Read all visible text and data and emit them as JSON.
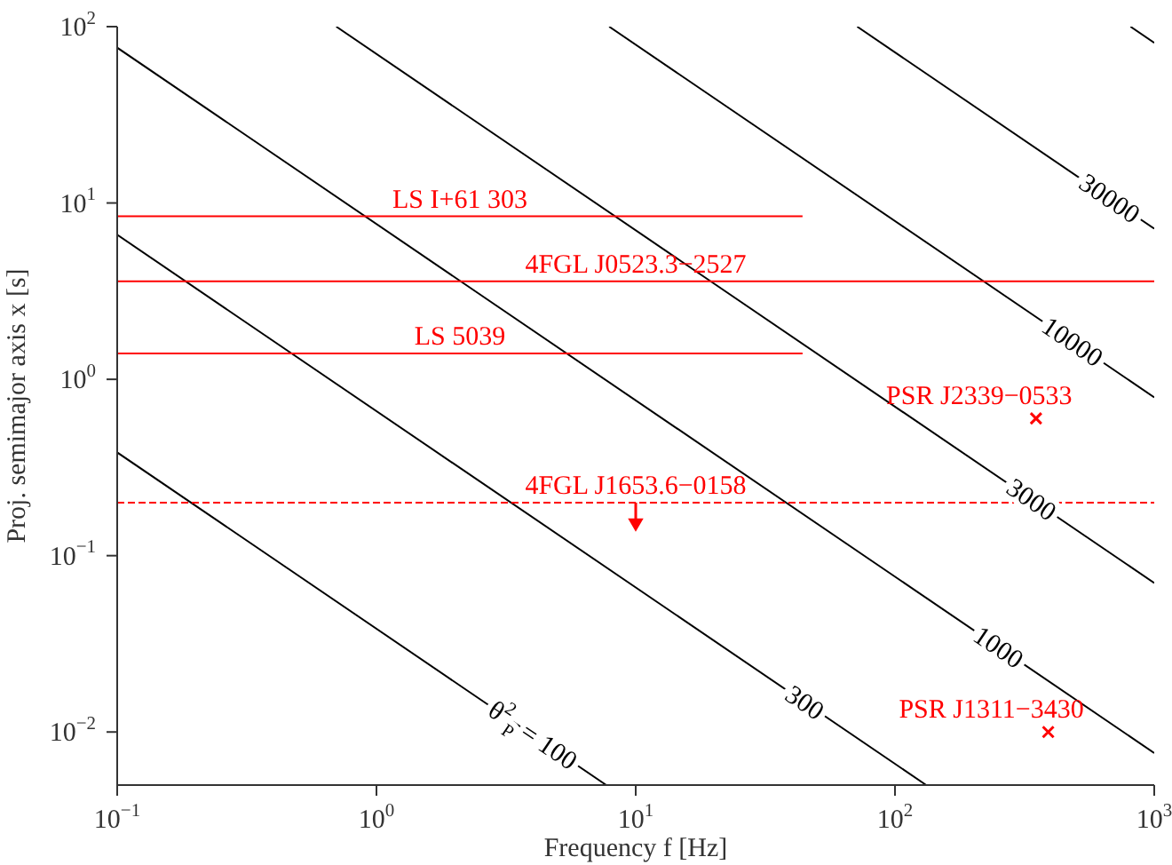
{
  "chart_data": {
    "type": "line",
    "xlabel": "Frequency f [Hz]",
    "ylabel": "Proj. semimajor axis x [s]",
    "log": "xy",
    "xlim": [
      0.1,
      1000
    ],
    "ylim": [
      0.005,
      100
    ],
    "xticks": [
      {
        "value": 0.1,
        "label": "10$^{−1}$"
      },
      {
        "value": 1,
        "label": "10$^{0}$"
      },
      {
        "value": 10,
        "label": "10$^{1}$"
      },
      {
        "value": 100,
        "label": "10$^{2}$"
      },
      {
        "value": 1000,
        "label": "10$^{3}$"
      }
    ],
    "yticks": [
      {
        "value": 0.01,
        "label": "10$^{−2}$"
      },
      {
        "value": 0.1,
        "label": "10$^{−1}$"
      },
      {
        "value": 1,
        "label": "10$^{0}$"
      },
      {
        "value": 10,
        "label": "10$^{1}$"
      },
      {
        "value": 100,
        "label": "10$^{2}$"
      }
    ],
    "series": [
      {
        "name": "θ$^{2}$$_{P}$ = 100",
        "color": "#000000",
        "x": [
          0.1,
          7.7
        ],
        "values": [
          0.385,
          0.005
        ]
      },
      {
        "name": "300",
        "color": "#000000",
        "x": [
          0.1,
          132
        ],
        "values": [
          6.6,
          0.005
        ]
      },
      {
        "name": "1000",
        "color": "#000000",
        "x": [
          0.1,
          1000
        ],
        "values": [
          76,
          0.0076
        ]
      },
      {
        "name": "3000",
        "color": "#000000",
        "x": [
          0.7,
          1000
        ],
        "values": [
          100,
          0.07
        ]
      },
      {
        "name": "10000",
        "color": "#000000",
        "x": [
          7.9,
          1000
        ],
        "values": [
          100,
          0.79
        ]
      },
      {
        "name": "30000",
        "color": "#000000",
        "x": [
          71.5,
          1000
        ],
        "values": [
          100,
          7.15
        ]
      },
      {
        "color": "#000000",
        "x": [
          810,
          1000
        ],
        "values": [
          100,
          81
        ]
      },
      {
        "name": "LS I+61 303",
        "color": "#ff0000",
        "x": [
          0.1,
          44
        ],
        "values": [
          8.4,
          8.4
        ]
      },
      {
        "name": "4FGL J0523.3−2527",
        "color": "#ff0000",
        "x": [
          0.1,
          1000
        ],
        "values": [
          3.6,
          3.6
        ]
      },
      {
        "name": "LS 5039",
        "color": "#ff0000",
        "x": [
          0.1,
          44
        ],
        "values": [
          1.4,
          1.4
        ]
      },
      {
        "name": "4FGL J1653.6−0158",
        "color": "#ff0000",
        "line_style": "dashed",
        "x": [
          0.1,
          1000
        ],
        "values": [
          0.2,
          0.2
        ]
      },
      {
        "type": "scatter",
        "color": "#ff0000",
        "marker": "triangle",
        "x": [
          10
        ],
        "values": [
          0.15
        ],
        "errors": [
          [
            0.15,
            0.2
          ]
        ]
      },
      {
        "type": "scatter",
        "name": "PSR J2339−0533",
        "color": "#ff0000",
        "marker": "cross",
        "x": [
          350
        ],
        "values": [
          0.6
        ]
      },
      {
        "type": "scatter",
        "name": "PSR J1311−3430",
        "color": "#ff0000",
        "marker": "cross",
        "x": [
          390
        ],
        "values": [
          0.01
        ]
      }
    ]
  }
}
